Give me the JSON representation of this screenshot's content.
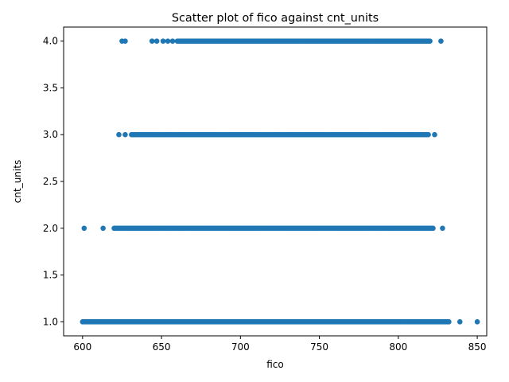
{
  "chart_data": {
    "type": "scatter",
    "title": "Scatter plot of fico against cnt_units",
    "xlabel": "fico",
    "ylabel": "cnt_units",
    "xlim": [
      588,
      856
    ],
    "ylim": [
      0.85,
      4.15
    ],
    "xticks": [
      "600",
      "650",
      "700",
      "750",
      "800",
      "850"
    ],
    "yticks": [
      "1.0",
      "1.5",
      "2.0",
      "2.5",
      "3.0",
      "3.5",
      "4.0"
    ],
    "xtick_values": [
      600,
      650,
      700,
      750,
      800,
      850
    ],
    "ytick_values": [
      1.0,
      1.5,
      2.0,
      2.5,
      3.0,
      3.5,
      4.0
    ],
    "grid": false,
    "marker_color": "#1f77b4",
    "series": [
      {
        "y": 1,
        "dense_range": [
          600,
          832
        ],
        "outliers_x": [
          839,
          850
        ]
      },
      {
        "y": 2,
        "dense_range": [
          620,
          822
        ],
        "outliers_x": [
          601,
          613,
          828
        ]
      },
      {
        "y": 3,
        "dense_range": [
          631,
          819
        ],
        "outliers_x": [
          623,
          627,
          823
        ]
      },
      {
        "y": 4,
        "dense_range": [
          660,
          820
        ],
        "outliers_x": [
          625,
          627,
          644,
          647,
          651,
          654,
          657,
          827
        ]
      }
    ]
  }
}
